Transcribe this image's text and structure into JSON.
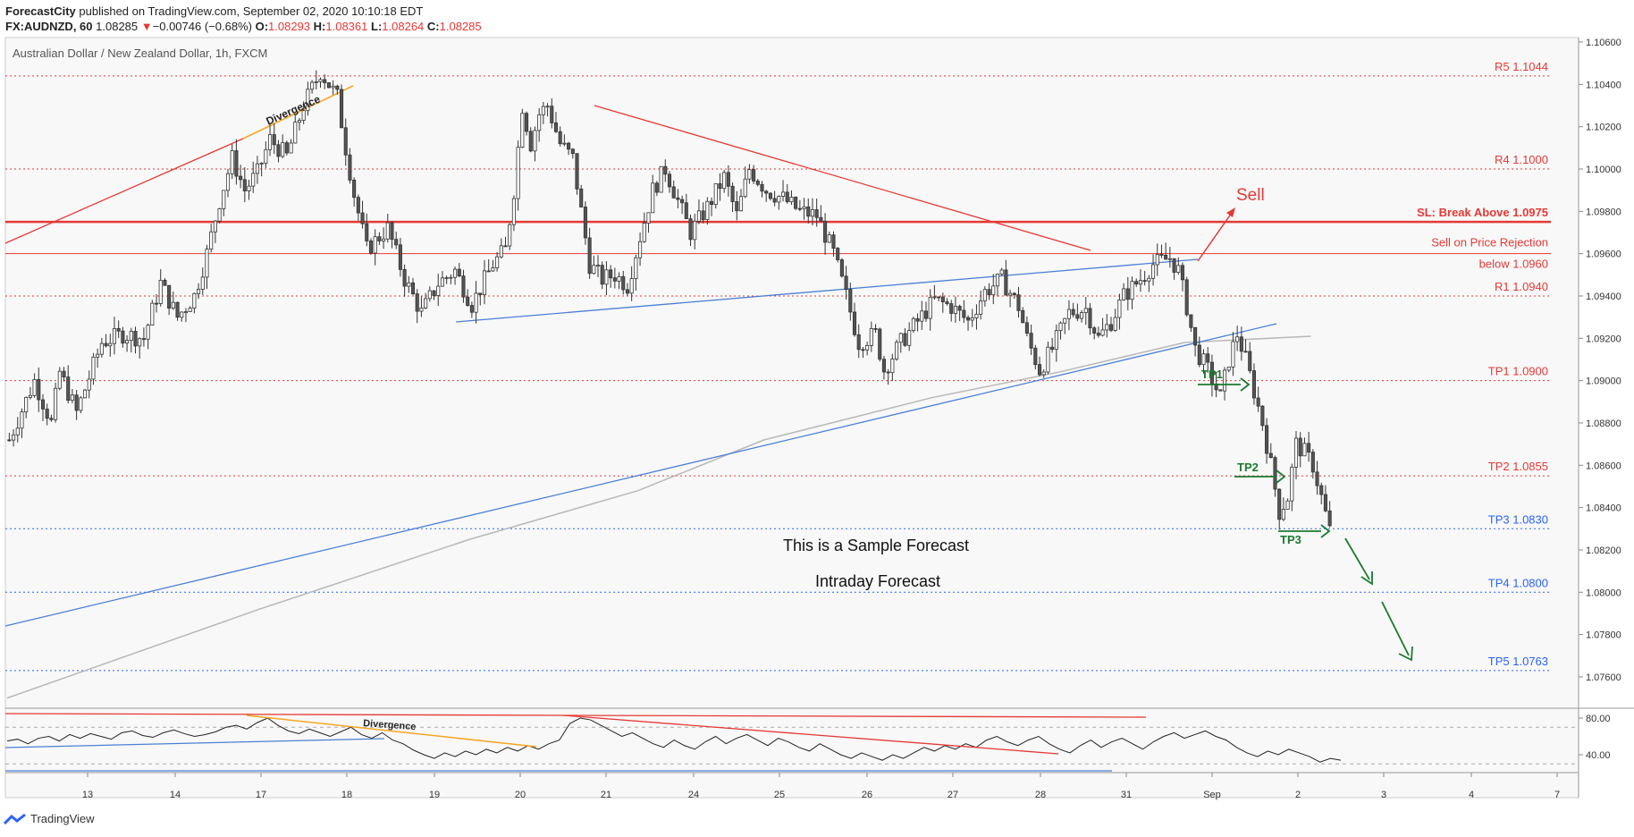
{
  "header": {
    "publisher": "ForecastCity",
    "published_text": "published on TradingView.com, September 02, 2020 10:10:18 EDT",
    "symbol": "FX:AUDNZD, 60",
    "last_price": "1.08285",
    "change_arrow": "▼",
    "change": "−0.00746 (−0.68%)",
    "open_label": "O:",
    "open": "1.08293",
    "high_label": "H:",
    "high": "1.08361",
    "low_label": "L:",
    "low": "1.08264",
    "close_label": "C:",
    "close": "1.08285"
  },
  "chart_title": "Australian Dollar / New Zealand Dollar, 1h, FXCM",
  "footer": {
    "brand": "TradingView"
  },
  "colors": {
    "up_candle": "#ffffff",
    "down_candle": "#555555",
    "red": "#e53935",
    "blue": "#2962ff",
    "blue_line": "#4a7fd6",
    "green": "#1b7a2e",
    "orange": "#f5a623",
    "ma": "#b8b8b8",
    "plot_bg": "#f8f8f8"
  },
  "chart_data": {
    "type": "candlestick",
    "title": "Australian Dollar / New Zealand Dollar, 1h, FXCM",
    "ylim": [
      1.0745,
      1.1068
    ],
    "y_ticks": [
      "1.10600",
      "1.10400",
      "1.10200",
      "1.10000",
      "1.09800",
      "1.09600",
      "1.09400",
      "1.09200",
      "1.09000",
      "1.08800",
      "1.08600",
      "1.08400",
      "1.08200",
      "1.08000",
      "1.07800",
      "1.07600"
    ],
    "x_ticks": [
      "13",
      "14",
      "17",
      "18",
      "19",
      "20",
      "21",
      "24",
      "25",
      "26",
      "27",
      "28",
      "31",
      "Sep",
      "2",
      "3",
      "4",
      "7"
    ],
    "price_path": [
      [
        0,
        1.0872
      ],
      [
        6,
        1.09
      ],
      [
        10,
        1.088
      ],
      [
        12,
        1.0904
      ],
      [
        16,
        1.0885
      ],
      [
        22,
        1.0918
      ],
      [
        27,
        1.0922
      ],
      [
        32,
        1.092
      ],
      [
        36,
        1.0946
      ],
      [
        40,
        1.093
      ],
      [
        44,
        1.094
      ],
      [
        47,
        1.096
      ],
      [
        50,
        1.0985
      ],
      [
        53,
        1.1005
      ],
      [
        56,
        1.099
      ],
      [
        59,
        1.0998
      ],
      [
        62,
        1.1014
      ],
      [
        66,
        1.1006
      ],
      [
        70,
        1.103
      ],
      [
        74,
        1.1046
      ],
      [
        78,
        1.1034
      ],
      [
        80,
        1.101
      ],
      [
        82,
        1.0988
      ],
      [
        85,
        1.0962
      ],
      [
        90,
        1.0972
      ],
      [
        94,
        1.0948
      ],
      [
        98,
        1.0932
      ],
      [
        102,
        1.0946
      ],
      [
        106,
        1.0952
      ],
      [
        110,
        1.0936
      ],
      [
        115,
        1.0955
      ],
      [
        118,
        1.0962
      ],
      [
        120,
        1.099
      ],
      [
        122,
        1.103
      ],
      [
        124,
        1.1012
      ],
      [
        126,
        1.1026
      ],
      [
        128,
        1.103
      ],
      [
        131,
        1.1012
      ],
      [
        134,
        1.1005
      ],
      [
        136,
        1.098
      ],
      [
        138,
        1.0955
      ],
      [
        141,
        1.0948
      ],
      [
        144,
        1.095
      ],
      [
        147,
        1.0945
      ],
      [
        150,
        1.0968
      ],
      [
        153,
        1.099
      ],
      [
        156,
        1.1
      ],
      [
        159,
        1.0985
      ],
      [
        162,
        1.097
      ],
      [
        166,
        1.0982
      ],
      [
        170,
        1.0996
      ],
      [
        173,
        1.0978
      ],
      [
        176,
        1.1
      ],
      [
        180,
        1.099
      ],
      [
        184,
        1.0986
      ],
      [
        188,
        1.098
      ],
      [
        192,
        1.0978
      ],
      [
        196,
        1.096
      ],
      [
        199,
        1.094
      ],
      [
        202,
        1.0918
      ],
      [
        206,
        1.0922
      ],
      [
        208,
        1.0905
      ],
      [
        212,
        1.0918
      ],
      [
        216,
        1.0928
      ],
      [
        220,
        1.0938
      ],
      [
        224,
        1.0935
      ],
      [
        228,
        1.0928
      ],
      [
        232,
        1.0942
      ],
      [
        236,
        1.0948
      ],
      [
        240,
        1.0935
      ],
      [
        242,
        1.092
      ],
      [
        245,
        1.0905
      ],
      [
        248,
        1.0915
      ],
      [
        252,
        1.0932
      ],
      [
        256,
        1.0934
      ],
      [
        259,
        1.092
      ],
      [
        262,
        1.0928
      ],
      [
        265,
        1.094
      ],
      [
        269,
        1.0948
      ],
      [
        272,
        1.0955
      ],
      [
        276,
        1.0958
      ],
      [
        278,
        1.0952
      ],
      [
        280,
        1.0935
      ],
      [
        282,
        1.0915
      ],
      [
        285,
        1.0905
      ],
      [
        288,
        1.0892
      ],
      [
        290,
        1.091
      ],
      [
        292,
        1.0922
      ],
      [
        294,
        1.091
      ],
      [
        296,
        1.0895
      ],
      [
        298,
        1.088
      ],
      [
        300,
        1.086
      ],
      [
        302,
        1.0838
      ],
      [
        304,
        1.0845
      ],
      [
        306,
        1.087
      ],
      [
        308,
        1.0866
      ],
      [
        310,
        1.086
      ],
      [
        312,
        1.0845
      ],
      [
        314,
        1.0829
      ]
    ],
    "moving_average": [
      [
        0,
        1.075
      ],
      [
        60,
        1.0792
      ],
      [
        110,
        1.0825
      ],
      [
        150,
        1.0848
      ],
      [
        180,
        1.0872
      ],
      [
        220,
        1.0892
      ],
      [
        250,
        1.0904
      ],
      [
        280,
        1.0918
      ],
      [
        310,
        1.0921
      ]
    ],
    "levels": [
      {
        "label": "R5 1.1044",
        "value": 1.1044,
        "color": "#e53935",
        "style": "dotted"
      },
      {
        "label": "R4 1.1000",
        "value": 1.1,
        "color": "#e53935",
        "style": "dotted"
      },
      {
        "label": "SL: Break Above 1.0975",
        "value": 1.0975,
        "color": "#e53935",
        "style": "solid"
      },
      {
        "label": "Sell on Price Rejection",
        "label2": "below 1.0960",
        "value": 1.096,
        "color": "#e53935",
        "style": "thin"
      },
      {
        "label": "R1 1.0940",
        "value": 1.094,
        "color": "#e53935",
        "style": "dotted"
      },
      {
        "label": "TP1 1.0900",
        "value": 1.09,
        "color": "#e53935",
        "style": "dotted"
      },
      {
        "label": "TP2 1.0855",
        "value": 1.0855,
        "color": "#e53935",
        "style": "dotted"
      },
      {
        "label": "TP3 1.0830",
        "value": 1.083,
        "color": "#2962ff",
        "style": "dotted"
      },
      {
        "label": "TP4 1.0800",
        "value": 1.08,
        "color": "#2962ff",
        "style": "dotted"
      },
      {
        "label": "TP5 1.0763",
        "value": 1.0763,
        "color": "#2962ff",
        "style": "dotted"
      }
    ],
    "annotations": {
      "sell": "Sell",
      "divergence": "Divergence",
      "tp1": "TP1",
      "tp2": "TP2",
      "tp3": "TP3",
      "sample": "This is a Sample Forecast",
      "intraday": "Intraday Forecast"
    },
    "oscillator": {
      "ylim": [
        20,
        100
      ],
      "y_ticks": [
        "80.00",
        "40.00"
      ],
      "bands": [
        70,
        30
      ],
      "divergence_label": "Divergence",
      "values": [
        55,
        57,
        52,
        58,
        60,
        55,
        62,
        58,
        63,
        60,
        57,
        64,
        66,
        61,
        59,
        64,
        67,
        63,
        60,
        62,
        65,
        70,
        72,
        68,
        75,
        80,
        72,
        66,
        63,
        68,
        64,
        60,
        65,
        70,
        62,
        58,
        64,
        56,
        52,
        45,
        40,
        36,
        42,
        38,
        44,
        40,
        46,
        42,
        48,
        44,
        50,
        46,
        52,
        56,
        74,
        80,
        78,
        72,
        66,
        60,
        64,
        58,
        52,
        48,
        56,
        50,
        46,
        54,
        60,
        52,
        58,
        62,
        56,
        50,
        58,
        54,
        48,
        44,
        52,
        46,
        40,
        36,
        42,
        38,
        34,
        40,
        36,
        42,
        48,
        44,
        50,
        46,
        52,
        48,
        56,
        60,
        54,
        50,
        56,
        60,
        52,
        46,
        42,
        50,
        56,
        48,
        54,
        58,
        52,
        46,
        54,
        60,
        64,
        58,
        62,
        66,
        60,
        56,
        48,
        42,
        38,
        44,
        40,
        46,
        42,
        38,
        32,
        36,
        34
      ]
    }
  }
}
